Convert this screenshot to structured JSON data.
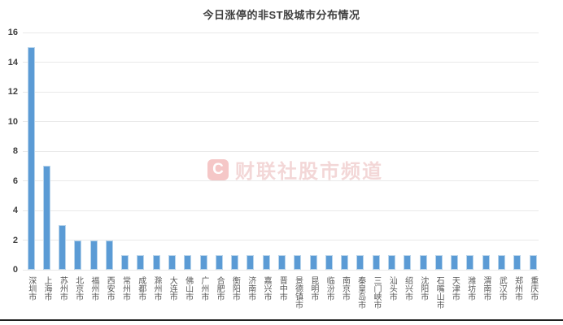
{
  "chart_data": {
    "type": "bar",
    "title": "今日涨停的非ST股城市分布情况",
    "categories": [
      "深圳市",
      "上海市",
      "苏州市",
      "北京市",
      "福州市",
      "西安市",
      "常州市",
      "成都市",
      "滁州市",
      "大连市",
      "佛山市",
      "广州市",
      "合肥市",
      "衡阳市",
      "济南市",
      "嘉兴市",
      "晋中市",
      "景德镇市",
      "昆明市",
      "临汾市",
      "南京市",
      "秦皇岛市",
      "三门峡市",
      "汕头市",
      "绍兴市",
      "沈阳市",
      "石嘴山市",
      "天津市",
      "潍坊市",
      "渭南市",
      "武汉市",
      "郑州市",
      "重庆市"
    ],
    "values": [
      15,
      7,
      3,
      2,
      2,
      2,
      1,
      1,
      1,
      1,
      1,
      1,
      1,
      1,
      1,
      1,
      1,
      1,
      1,
      1,
      1,
      1,
      1,
      1,
      1,
      1,
      1,
      1,
      1,
      1,
      1,
      1,
      1
    ],
    "xlabel": "",
    "ylabel": "",
    "ylim": [
      0,
      16
    ],
    "ytick_step": 2,
    "grid": true,
    "legend": "none",
    "colors": {
      "bar": "#5b9bd5",
      "bar_edge": "#b9d5ec",
      "grid": "#e9e9e9",
      "title_text": "#404040",
      "axis_text": "#595959"
    },
    "watermark": {
      "logo_letter": "C",
      "text": "财联社股市频道",
      "color": "#e4a2a2"
    }
  }
}
